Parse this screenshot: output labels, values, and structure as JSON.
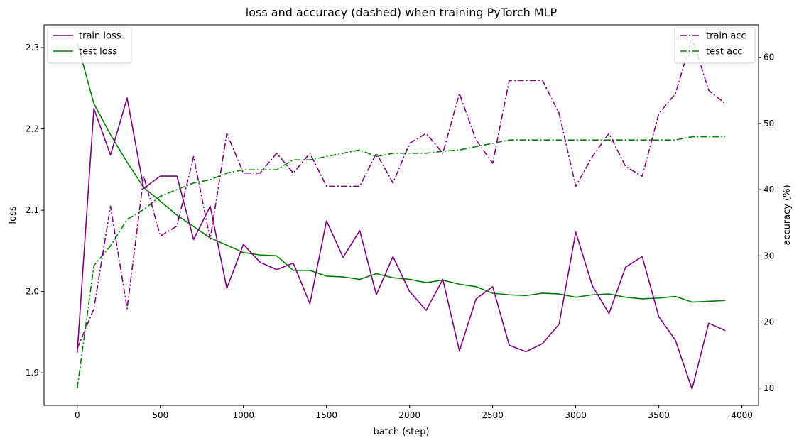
{
  "chart_data": {
    "type": "line",
    "title": "loss and accuracy (dashed) when training PyTorch MLP",
    "xlabel": "batch (step)",
    "ylabel": "loss",
    "y2label": "accuracy (%)",
    "xlim": [
      -200,
      4100
    ],
    "ylim": [
      1.86,
      2.328
    ],
    "y2lim": [
      7.4,
      64.9
    ],
    "xticks": [
      0,
      500,
      1000,
      1500,
      2000,
      2500,
      3000,
      3500,
      4000
    ],
    "xtick_labels": [
      "0",
      "500",
      "1000",
      "1500",
      "2000",
      "2500",
      "3000",
      "3500",
      "4000"
    ],
    "yticks": [
      1.9,
      2.0,
      2.1,
      2.2,
      2.3
    ],
    "ytick_labels": [
      "1.9",
      "2.0",
      "2.1",
      "2.2",
      "2.3"
    ],
    "y2ticks": [
      10,
      20,
      30,
      40,
      50,
      60
    ],
    "y2tick_labels": [
      "10",
      "20",
      "30",
      "40",
      "50",
      "60"
    ],
    "grid": false,
    "x": [
      0,
      100,
      200,
      300,
      400,
      500,
      600,
      700,
      800,
      900,
      1000,
      1100,
      1200,
      1300,
      1400,
      1500,
      1600,
      1700,
      1800,
      1900,
      2000,
      2100,
      2200,
      2300,
      2400,
      2500,
      2600,
      2700,
      2800,
      2900,
      3000,
      3100,
      3200,
      3300,
      3400,
      3500,
      3600,
      3700,
      3800,
      3900
    ],
    "series": [
      {
        "name": "train loss",
        "axis": "left",
        "color": "#800080",
        "linestyle": "solid",
        "values": [
          1.925,
          2.225,
          2.168,
          2.238,
          2.127,
          2.142,
          2.142,
          2.064,
          2.105,
          2.004,
          2.058,
          2.036,
          2.027,
          2.035,
          1.985,
          2.087,
          2.042,
          2.075,
          1.996,
          2.043,
          2.0,
          1.977,
          2.015,
          1.927,
          1.991,
          2.006,
          1.934,
          1.926,
          1.936,
          1.96,
          2.073,
          2.007,
          1.973,
          2.03,
          2.043,
          1.969,
          1.94,
          1.88,
          1.961,
          1.952
        ]
      },
      {
        "name": "test loss",
        "axis": "left",
        "color": "#008000",
        "linestyle": "solid",
        "values": [
          2.306,
          2.231,
          2.193,
          2.159,
          2.128,
          2.111,
          2.094,
          2.08,
          2.066,
          2.057,
          2.048,
          2.045,
          2.044,
          2.026,
          2.026,
          2.019,
          2.018,
          2.015,
          2.022,
          2.017,
          2.015,
          2.011,
          2.014,
          2.009,
          2.006,
          1.998,
          1.996,
          1.995,
          1.998,
          1.997,
          1.993,
          1.996,
          1.997,
          1.993,
          1.991,
          1.992,
          1.994,
          1.987,
          1.988,
          1.989
        ]
      },
      {
        "name": "train acc",
        "axis": "right",
        "color": "#800080",
        "linestyle": "dashdot",
        "values": [
          16.0,
          22.0,
          37.5,
          22.0,
          42.0,
          33.0,
          34.5,
          45.0,
          32.5,
          48.5,
          42.5,
          42.5,
          45.5,
          42.5,
          45.5,
          40.5,
          40.5,
          40.5,
          45.5,
          41.0,
          47.0,
          48.5,
          45.5,
          54.5,
          47.5,
          44.0,
          56.5,
          56.5,
          56.5,
          51.5,
          40.5,
          45.0,
          48.5,
          43.5,
          42.0,
          51.5,
          54.5,
          63.0,
          55.0,
          53.0
        ]
      },
      {
        "name": "test acc",
        "axis": "right",
        "color": "#008000",
        "linestyle": "dashdot",
        "values": [
          10.0,
          28.5,
          31.5,
          35.5,
          37.0,
          39.0,
          40.0,
          41.0,
          41.5,
          42.5,
          43.0,
          43.0,
          43.0,
          44.5,
          44.5,
          45.0,
          45.5,
          46.0,
          45.0,
          45.5,
          45.5,
          45.5,
          45.8,
          46.0,
          46.5,
          47.0,
          47.5,
          47.5,
          47.5,
          47.5,
          47.5,
          47.5,
          47.5,
          47.5,
          47.5,
          47.5,
          47.5,
          48.0,
          48.0,
          48.0
        ]
      }
    ],
    "legend_left": {
      "placement": "upper-left",
      "entries": [
        "train loss",
        "test loss"
      ]
    },
    "legend_right": {
      "placement": "upper-right",
      "entries": [
        "train acc",
        "test acc"
      ]
    }
  }
}
